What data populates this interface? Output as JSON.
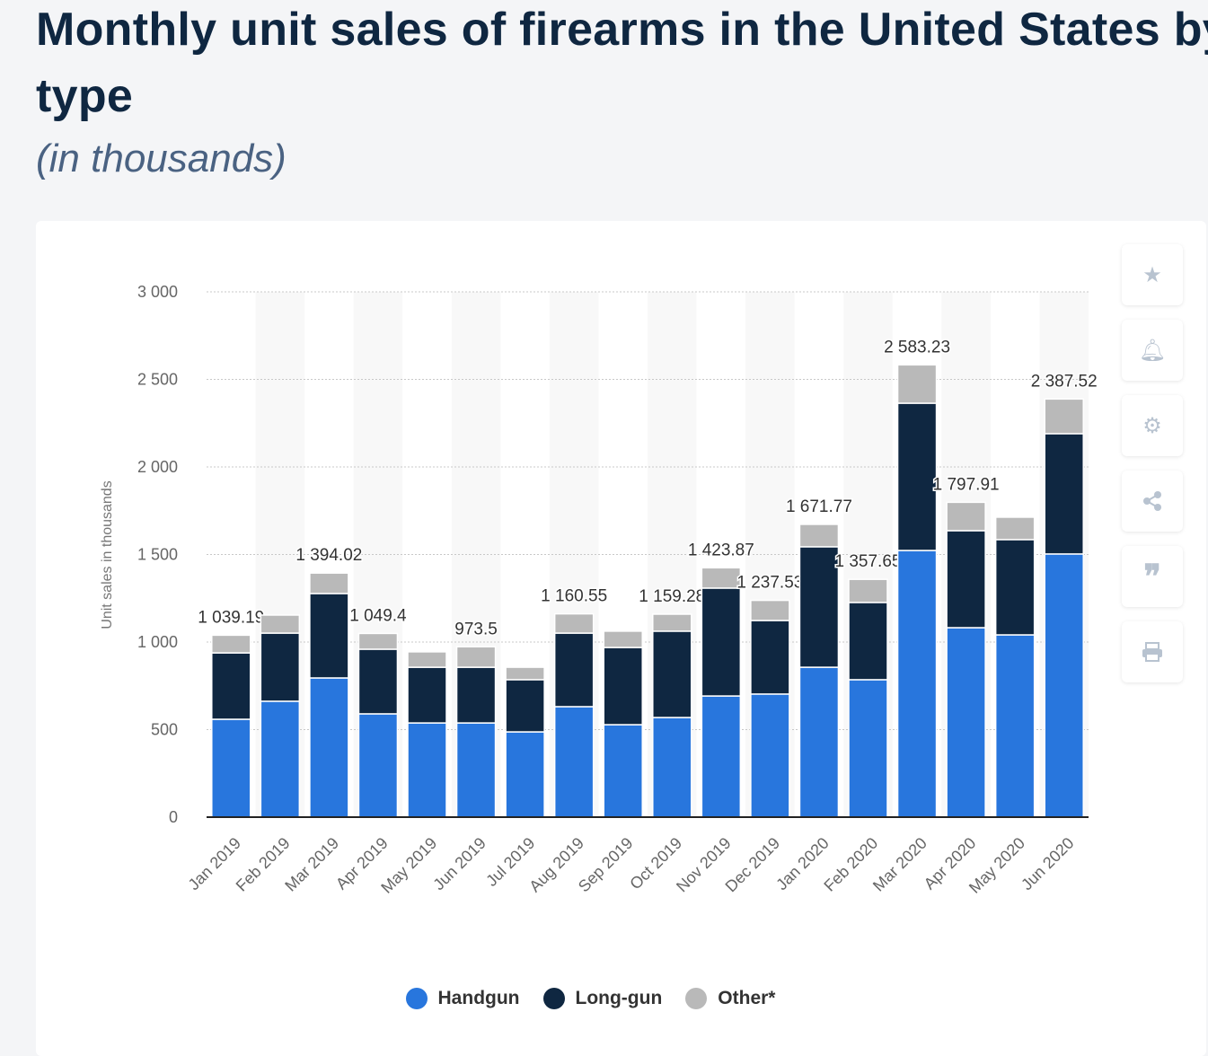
{
  "header": {
    "title": "Monthly unit sales of firearms in the United States by type",
    "subtitle": "(in thousands)"
  },
  "toolbar": {
    "icons": [
      "star-icon",
      "bell-icon",
      "gear-icon",
      "share-icon",
      "quote-icon",
      "print-icon"
    ]
  },
  "colors": {
    "handgun": "#2876dd",
    "longgun": "#0f2741",
    "other": "#b9b9b9"
  },
  "chart_data": {
    "type": "bar",
    "stacked": true,
    "title": "Monthly unit sales of firearms in the United States by type",
    "subtitle": "(in thousands)",
    "xlabel": "",
    "ylabel": "Unit sales in thousands",
    "ylim": [
      0,
      3000
    ],
    "yticks": [
      0,
      500,
      1000,
      1500,
      2000,
      2500,
      3000
    ],
    "ytick_labels": [
      "0",
      "500",
      "1 000",
      "1 500",
      "2 000",
      "2 500",
      "3 000"
    ],
    "grid": true,
    "legend_position": "bottom",
    "categories": [
      "Jan 2019",
      "Feb 2019",
      "Mar 2019",
      "Apr 2019",
      "May 2019",
      "Jun 2019",
      "Jul 2019",
      "Aug 2019",
      "Sep 2019",
      "Oct 2019",
      "Nov 2019",
      "Dec 2019",
      "Jan 2020",
      "Feb 2020",
      "Mar 2020",
      "Apr 2020",
      "May 2020",
      "Jun 2020"
    ],
    "series": [
      {
        "name": "Handgun",
        "values": [
          559,
          662,
          795,
          590,
          538,
          538,
          487,
          631,
          528,
          569,
          692,
          703,
          856,
          785,
          1523,
          1082,
          1041,
          1503
        ]
      },
      {
        "name": "Long-gun",
        "values": [
          379,
          389,
          482,
          369,
          318,
          318,
          298,
          420,
          441,
          493,
          616,
          420,
          688,
          441,
          841,
          554,
          544,
          687
        ]
      },
      {
        "name": "Other*",
        "values": [
          101,
          103,
          117,
          90,
          88,
          117,
          71,
          110,
          93,
          97,
          116,
          115,
          128,
          132,
          219,
          162,
          128,
          198
        ]
      }
    ],
    "total_labels": [
      "1 039.19",
      null,
      "1 394.02",
      "1 049.4",
      null,
      "973.5",
      null,
      "1 160.55",
      null,
      "1 159.28",
      "1 423.87",
      "1 237.53",
      "1 671.77",
      "1 357.65",
      "2 583.23",
      "1 797.91",
      null,
      "2 387.52"
    ]
  }
}
